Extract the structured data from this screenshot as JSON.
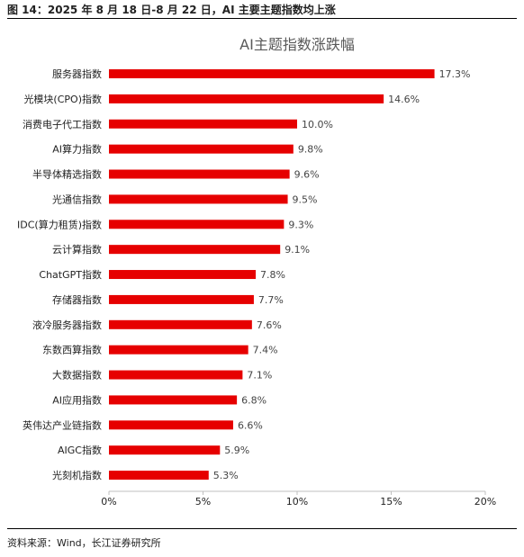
{
  "figure": {
    "caption": "图 14：2025 年 8 月 18 日-8 月 22 日，AI 主要主题指数均上涨",
    "source": "资料来源：Wind，长江证券研究所"
  },
  "chart_data": {
    "type": "bar",
    "orientation": "horizontal",
    "title": "AI主题指数涨跌幅",
    "categories": [
      "服务器指数",
      "光模块(CPO)指数",
      "消费电子代工指数",
      "AI算力指数",
      "半导体精选指数",
      "光通信指数",
      "IDC(算力租赁)指数",
      "云计算指数",
      "ChatGPT指数",
      "存储器指数",
      "液冷服务器指数",
      "东数西算指数",
      "大数据指数",
      "AI应用指数",
      "英伟达产业链指数",
      "AIGC指数",
      "光刻机指数"
    ],
    "values": [
      17.3,
      14.6,
      10.0,
      9.8,
      9.6,
      9.5,
      9.3,
      9.1,
      7.8,
      7.7,
      7.6,
      7.4,
      7.1,
      6.8,
      6.6,
      5.9,
      5.3
    ],
    "value_labels": [
      "17.3%",
      "14.6%",
      "10.0%",
      "9.8%",
      "9.6%",
      "9.5%",
      "9.3%",
      "9.1%",
      "7.8%",
      "7.7%",
      "7.6%",
      "7.4%",
      "7.1%",
      "6.8%",
      "6.6%",
      "5.9%",
      "5.3%"
    ],
    "xlim": [
      0,
      20
    ],
    "xticks": [
      0,
      5,
      10,
      15,
      20
    ],
    "xtick_labels": [
      "0%",
      "5%",
      "10%",
      "15%",
      "20%"
    ],
    "grid": false,
    "legend": "none",
    "bar_color": "#e60000"
  }
}
